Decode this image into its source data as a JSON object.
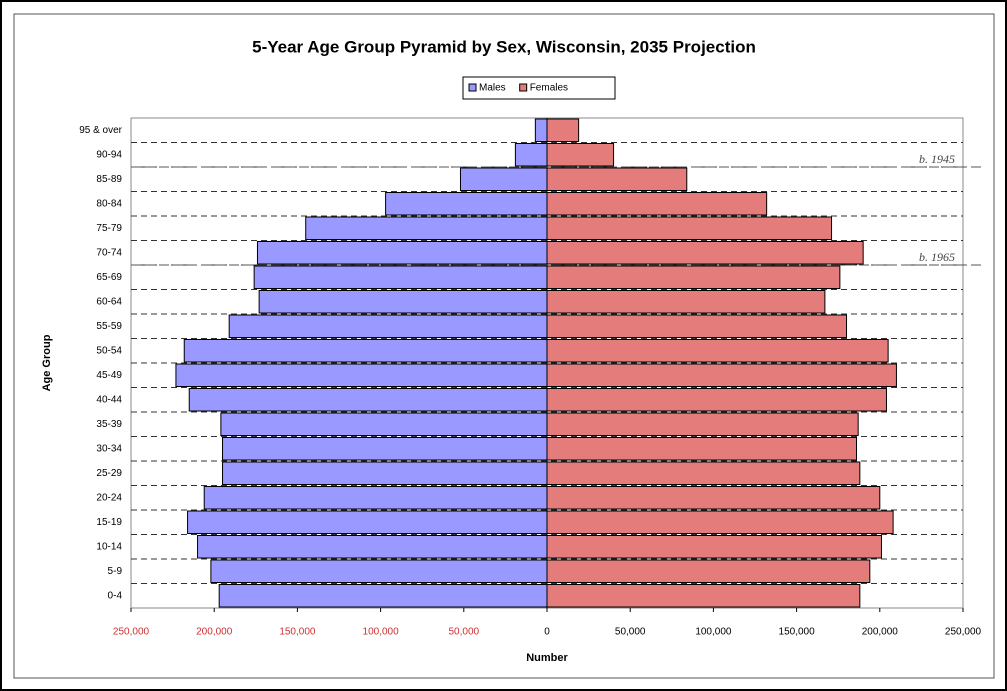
{
  "chart_data": {
    "type": "pyramid",
    "title": "5-Year Age Group Pyramid by Sex, Wisconsin, 2035 Projection",
    "x_label": "Number",
    "y_label": "Age Group",
    "legend": "top",
    "categories": [
      "0-4",
      "5-9",
      "10-14",
      "15-19",
      "20-24",
      "25-29",
      "30-34",
      "35-39",
      "40-44",
      "45-49",
      "50-54",
      "55-59",
      "60-64",
      "65-69",
      "70-74",
      "75-79",
      "80-84",
      "85-89",
      "90-94",
      "95 & over"
    ],
    "series": [
      {
        "name": "Males",
        "color": "#9999ff",
        "values": [
          -197000,
          -202000,
          -210000,
          -216000,
          -206000,
          -195000,
          -195000,
          -196000,
          -215000,
          -223000,
          -218000,
          -191000,
          -173000,
          -176000,
          -174000,
          -145000,
          -97000,
          -52000,
          -19000,
          -7000
        ]
      },
      {
        "name": "Females",
        "color": "#e47c7c",
        "values": [
          188000,
          194000,
          201000,
          208000,
          200000,
          188000,
          186000,
          187000,
          204000,
          210000,
          205000,
          180000,
          167000,
          176000,
          190000,
          171000,
          132000,
          84000,
          40000,
          19000
        ]
      }
    ],
    "xlim": [
      -250000,
      250000
    ],
    "xticks": [
      {
        "value": -250000,
        "label": "250,000"
      },
      {
        "value": -200000,
        "label": "200,000"
      },
      {
        "value": -150000,
        "label": "150,000"
      },
      {
        "value": -100000,
        "label": "100,000"
      },
      {
        "value": -50000,
        "label": "50,000"
      },
      0,
      {
        "value": 50000,
        "label": "50,000"
      },
      {
        "value": 100000,
        "label": "100,000"
      },
      {
        "value": 150000,
        "label": "150,000"
      },
      {
        "value": 200000,
        "label": "200,000"
      },
      {
        "value": 250000,
        "label": "250,000"
      }
    ],
    "annotations": [
      "b. 1945",
      "b. 1965"
    ]
  }
}
